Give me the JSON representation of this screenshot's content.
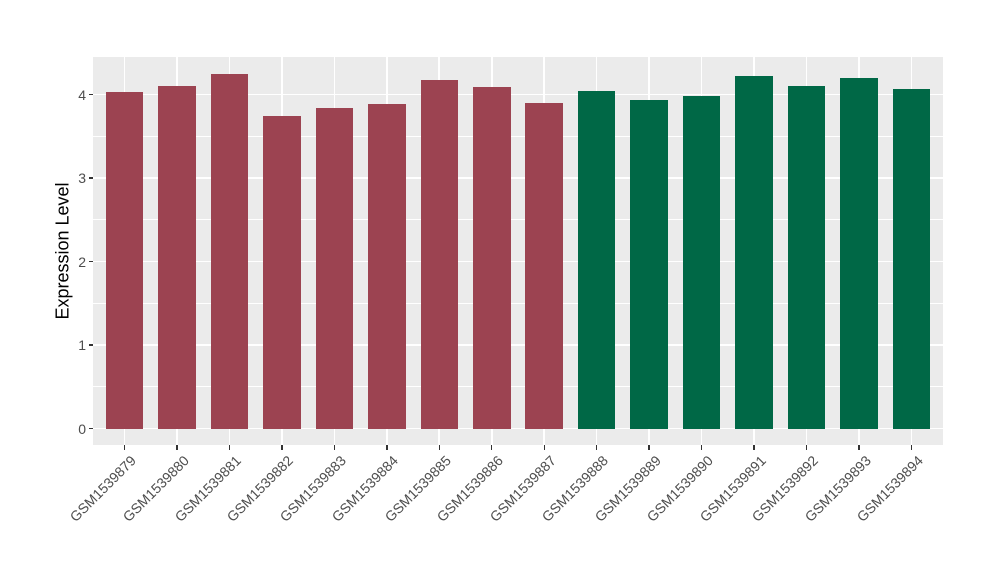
{
  "chart_data": {
    "type": "bar",
    "title": "",
    "xlabel": "",
    "ylabel": "Expression Level",
    "categories": [
      "GSM1539879",
      "GSM1539880",
      "GSM1539881",
      "GSM1539882",
      "GSM1539883",
      "GSM1539884",
      "GSM1539885",
      "GSM1539886",
      "GSM1539887",
      "GSM1539888",
      "GSM1539889",
      "GSM1539890",
      "GSM1539891",
      "GSM1539892",
      "GSM1539893",
      "GSM1539894"
    ],
    "values": [
      4.03,
      4.1,
      4.25,
      3.74,
      3.84,
      3.89,
      4.17,
      4.09,
      3.9,
      4.04,
      3.93,
      3.98,
      4.22,
      4.1,
      4.2,
      4.07
    ],
    "groups": [
      "group1",
      "group1",
      "group1",
      "group1",
      "group1",
      "group1",
      "group1",
      "group1",
      "group1",
      "group2",
      "group2",
      "group2",
      "group2",
      "group2",
      "group2",
      "group2"
    ],
    "group_colors": {
      "group1": "#9C4351",
      "group2": "#006846"
    },
    "yticks": [
      0,
      1,
      2,
      3,
      4
    ],
    "yticks_minor": [
      0.5,
      1.5,
      2.5,
      3.5
    ],
    "ylim": [
      -0.21,
      4.46
    ],
    "legend_position": "none",
    "grid": {
      "background": "#EBEBEB",
      "major_color": "#FFFFFF",
      "minor_color": "#FFFFFF",
      "vertical_major_per_category": true
    },
    "tick_mark_color": "#333333",
    "axis_text_color": "#4D4D4D",
    "axis_title_color": "#000000"
  }
}
